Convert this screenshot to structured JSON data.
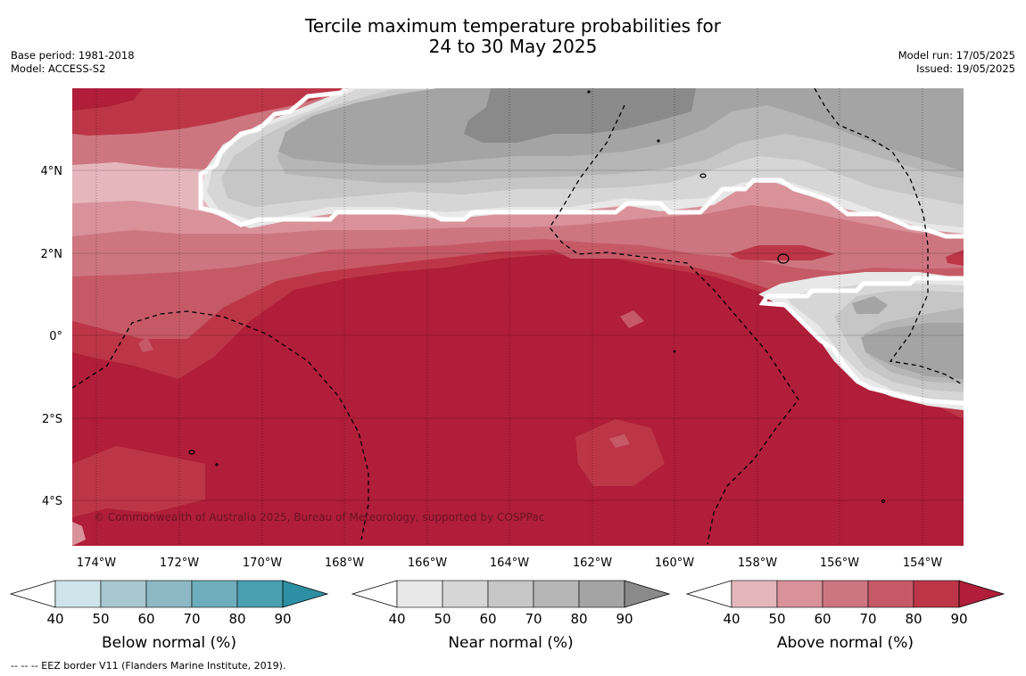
{
  "title_line1": "Tercile maximum temperature probabilities for",
  "title_line2": "24 to 30 May 2025",
  "base_period": "Base period: 1981-2018",
  "model": "Model: ACCESS-S2",
  "model_run": "Model run: 17/05/2025",
  "issued": "Issued: 19/05/2025",
  "copyright": "© Commonwealth of Australia 2025, Bureau of Meteorology, supported by COSPPac",
  "footnote": "--  --  -- EEZ border V11 (Flanders Marine Institute, 2019).",
  "map": {
    "lon_labels": [
      "174°W",
      "172°W",
      "170°W",
      "168°W",
      "166°W",
      "164°W",
      "162°W",
      "160°W",
      "158°W",
      "156°W",
      "154°W"
    ],
    "lat_labels": [
      "4°N",
      "2°N",
      "0°",
      "2°S",
      "4°S"
    ],
    "categories": {
      "below": {
        "name": "Below normal (%)",
        "colors": [
          "#cde4ea",
          "#a8c8cf",
          "#8db8c4",
          "#6eaebc",
          "#4a9fb0",
          "#2d8fa3"
        ]
      },
      "near": {
        "name": "Near normal (%)",
        "colors": [
          "#e8e8e8",
          "#d6d6d6",
          "#c6c6c6",
          "#b6b6b6",
          "#a4a4a4",
          "#8a8a8a"
        ]
      },
      "above": {
        "name": "Above normal (%)",
        "colors": [
          "#e5b7bd",
          "#d9929a",
          "#cd7680",
          "#c55a66",
          "#bc3648",
          "#b01e39"
        ]
      }
    }
  },
  "colorbars": [
    {
      "key": "below",
      "label": "Below normal (%)",
      "ticks": [
        "40",
        "50",
        "60",
        "70",
        "80",
        "90"
      ]
    },
    {
      "key": "near",
      "label": "Near normal (%)",
      "ticks": [
        "40",
        "50",
        "60",
        "70",
        "80",
        "90"
      ]
    },
    {
      "key": "above",
      "label": "Above normal (%)",
      "ticks": [
        "40",
        "50",
        "60",
        "70",
        "80",
        "90"
      ]
    }
  ]
}
